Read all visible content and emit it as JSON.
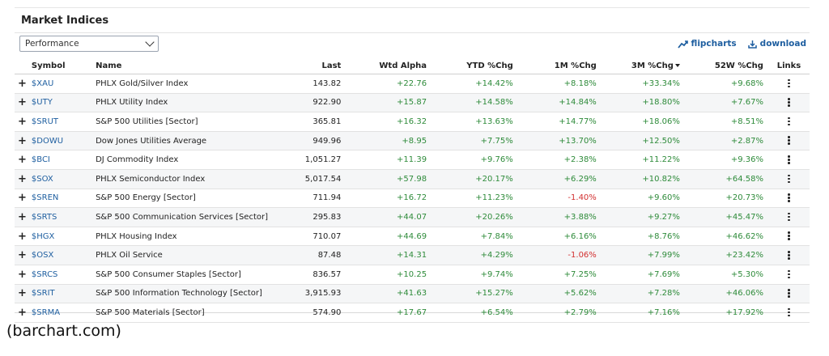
{
  "panel": {
    "title": "Market Indices",
    "view_select": "Performance",
    "flipcharts_label": "flipcharts",
    "download_label": "download"
  },
  "columns": {
    "symbol": "Symbol",
    "name": "Name",
    "last": "Last",
    "wtd_alpha": "Wtd Alpha",
    "ytd": "YTD %Chg",
    "m1": "1M %Chg",
    "m3": "3M %Chg",
    "w52": "52W %Chg",
    "links": "Links"
  },
  "rows": [
    {
      "symbol": "$XAU",
      "name": "PHLX Gold/Silver Index",
      "last": "143.82",
      "wtd_alpha": "+22.76",
      "ytd": "+14.42%",
      "m1": "+8.18%",
      "m3": "+33.34%",
      "w52": "+9.68%"
    },
    {
      "symbol": "$UTY",
      "name": "PHLX Utility Index",
      "last": "922.90",
      "wtd_alpha": "+15.87",
      "ytd": "+14.58%",
      "m1": "+14.84%",
      "m3": "+18.80%",
      "w52": "+7.67%"
    },
    {
      "symbol": "$SRUT",
      "name": "S&P 500 Utilities [Sector]",
      "last": "365.81",
      "wtd_alpha": "+16.32",
      "ytd": "+13.63%",
      "m1": "+14.77%",
      "m3": "+18.06%",
      "w52": "+8.51%"
    },
    {
      "symbol": "$DOWU",
      "name": "Dow Jones Utilities Average",
      "last": "949.96",
      "wtd_alpha": "+8.95",
      "ytd": "+7.75%",
      "m1": "+13.70%",
      "m3": "+12.50%",
      "w52": "+2.87%"
    },
    {
      "symbol": "$BCI",
      "name": "DJ Commodity Index",
      "last": "1,051.27",
      "wtd_alpha": "+11.39",
      "ytd": "+9.76%",
      "m1": "+2.38%",
      "m3": "+11.22%",
      "w52": "+9.36%"
    },
    {
      "symbol": "$SOX",
      "name": "PHLX Semiconductor Index",
      "last": "5,017.54",
      "wtd_alpha": "+57.98",
      "ytd": "+20.17%",
      "m1": "+6.29%",
      "m3": "+10.82%",
      "w52": "+64.58%"
    },
    {
      "symbol": "$SREN",
      "name": "S&P 500 Energy [Sector]",
      "last": "711.94",
      "wtd_alpha": "+16.72",
      "ytd": "+11.23%",
      "m1": "-1.40%",
      "m3": "+9.60%",
      "w52": "+20.73%"
    },
    {
      "symbol": "$SRTS",
      "name": "S&P 500 Communication Services [Sector]",
      "last": "295.83",
      "wtd_alpha": "+44.07",
      "ytd": "+20.26%",
      "m1": "+3.88%",
      "m3": "+9.27%",
      "w52": "+45.47%"
    },
    {
      "symbol": "$HGX",
      "name": "PHLX Housing Index",
      "last": "710.07",
      "wtd_alpha": "+44.69",
      "ytd": "+7.84%",
      "m1": "+6.16%",
      "m3": "+8.76%",
      "w52": "+46.62%"
    },
    {
      "symbol": "$OSX",
      "name": "PHLX Oil Service",
      "last": "87.48",
      "wtd_alpha": "+14.31",
      "ytd": "+4.29%",
      "m1": "-1.06%",
      "m3": "+7.99%",
      "w52": "+23.42%"
    },
    {
      "symbol": "$SRCS",
      "name": "S&P 500 Consumer Staples [Sector]",
      "last": "836.57",
      "wtd_alpha": "+10.25",
      "ytd": "+9.74%",
      "m1": "+7.25%",
      "m3": "+7.69%",
      "w52": "+5.30%"
    },
    {
      "symbol": "$SRIT",
      "name": "S&P 500 Information Technology [Sector]",
      "last": "3,915.93",
      "wtd_alpha": "+41.63",
      "ytd": "+15.27%",
      "m1": "+5.62%",
      "m3": "+7.28%",
      "w52": "+46.06%"
    },
    {
      "symbol": "$SRMA",
      "name": "S&P 500 Materials [Sector]",
      "last": "574.90",
      "wtd_alpha": "+17.67",
      "ytd": "+6.54%",
      "m1": "+2.79%",
      "m3": "+7.16%",
      "w52": "+17.92%"
    }
  ],
  "colors": {
    "positive": "#2e8b3a",
    "negative": "#d23030",
    "link": "#1f5fa0"
  },
  "icons": {
    "expand": "plus-icon",
    "links": "more-vertical-icon",
    "flipcharts": "trend-chart-icon",
    "download": "download-icon",
    "select": "chevron-down-icon",
    "sort": "sort-desc-icon"
  },
  "caption": "(barchart.com)"
}
